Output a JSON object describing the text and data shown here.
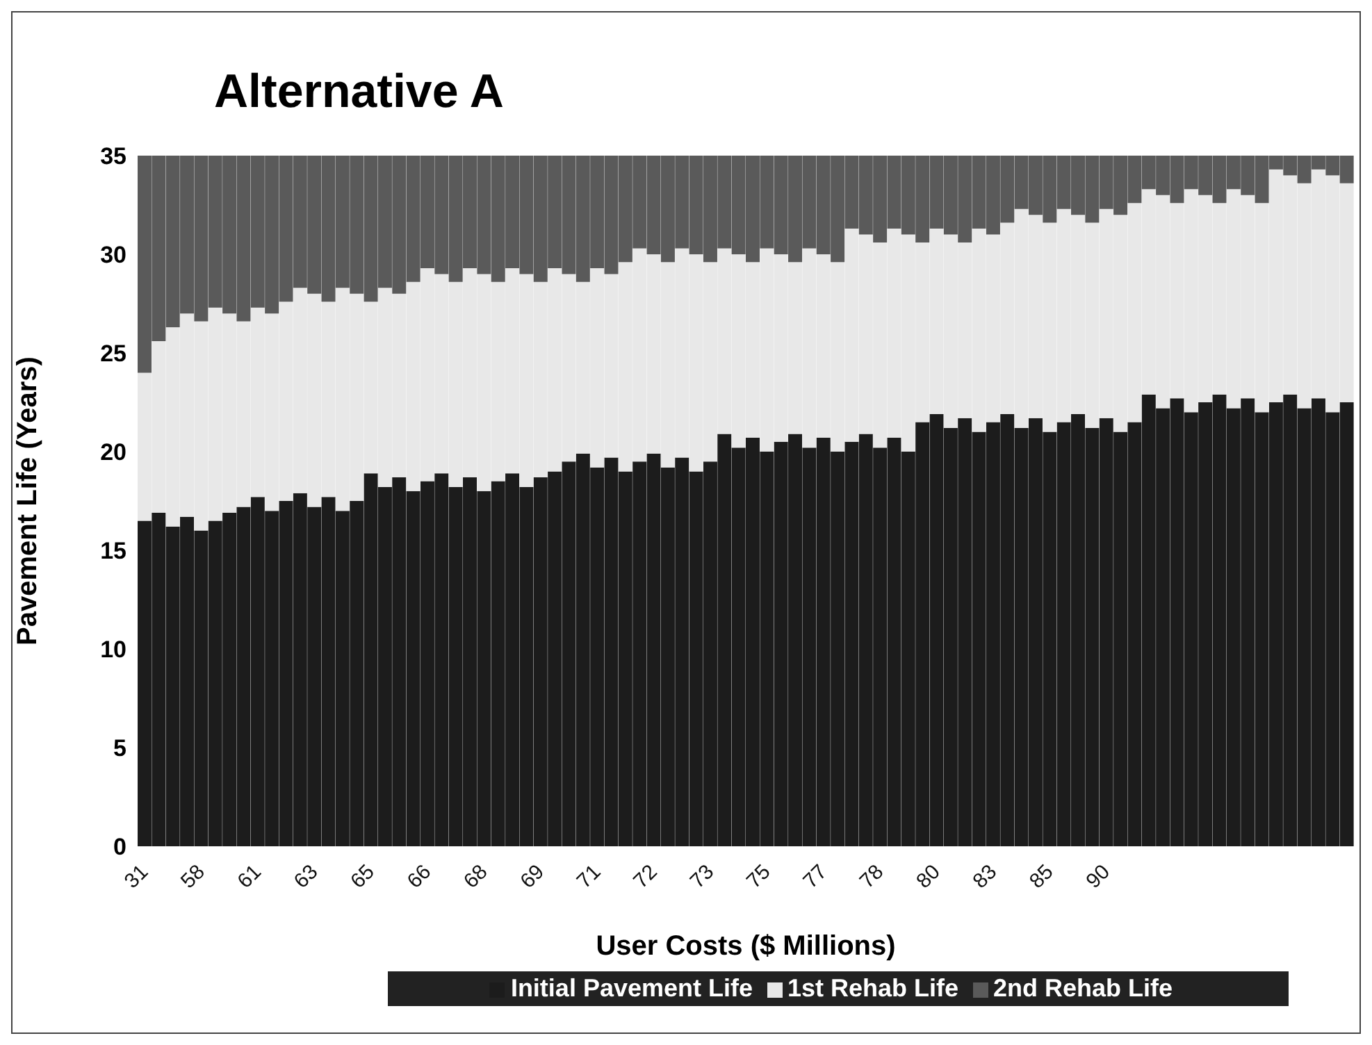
{
  "chart_data": {
    "type": "bar",
    "title": "Alternative A",
    "xlabel": "User Costs ($ Millions)",
    "ylabel": "Pavement Life (Years)",
    "stacked": true,
    "legend": "bottom",
    "grid": false,
    "categories": [
      "31",
      null,
      null,
      null,
      "58",
      null,
      null,
      null,
      "61",
      null,
      null,
      null,
      "63",
      null,
      null,
      null,
      "65",
      null,
      null,
      null,
      "66",
      null,
      null,
      null,
      "68",
      null,
      null,
      null,
      "69",
      null,
      null,
      null,
      "71",
      null,
      null,
      null,
      "72",
      null,
      null,
      null,
      "73",
      null,
      null,
      null,
      "75",
      null,
      null,
      null,
      "77",
      null,
      null,
      null,
      "78",
      null,
      null,
      null,
      "80",
      null,
      null,
      null,
      "83",
      null,
      null,
      null,
      "85",
      null,
      null,
      null,
      "90",
      null,
      null,
      null,
      null,
      null,
      null,
      null,
      null,
      null,
      null,
      null,
      null,
      null,
      null,
      null,
      null,
      null
    ],
    "ylim": [
      0,
      35
    ],
    "yticks": [
      0,
      5,
      10,
      15,
      20,
      25,
      30,
      35
    ],
    "series": [
      {
        "name": "Initial Pavement Life",
        "color": "#1c1c1c",
        "values": [
          16.5,
          16.9,
          16.2,
          16.7,
          16.0,
          16.5,
          16.9,
          17.2,
          17.7,
          17.0,
          17.5,
          17.9,
          17.2,
          17.7,
          17.0,
          17.5,
          18.9,
          18.2,
          18.7,
          18.0,
          18.5,
          18.9,
          18.2,
          18.7,
          18.0,
          18.5,
          18.9,
          18.2,
          18.7,
          19.0,
          19.5,
          19.9,
          19.2,
          19.7,
          19.0,
          19.5,
          19.9,
          19.2,
          19.7,
          19.0,
          19.5,
          20.9,
          20.2,
          20.7,
          20.0,
          20.5,
          20.9,
          20.2,
          20.7,
          20.0,
          20.5,
          20.9,
          20.2,
          20.7,
          20.0,
          21.5,
          21.9,
          21.2,
          21.7,
          21.0,
          21.5,
          21.9,
          21.2,
          21.7,
          21.0,
          21.5,
          21.9,
          21.2,
          21.7,
          21.0,
          21.5,
          22.9,
          22.2,
          22.7,
          22.0,
          22.5,
          22.9,
          22.2,
          22.7,
          22.0,
          22.5,
          22.9,
          22.2,
          22.7,
          22.0,
          22.5
        ]
      },
      {
        "name": "1st Rehab Life",
        "color": "#e8e8e8",
        "values": [
          7.5,
          8.7,
          10.1,
          10.3,
          10.6,
          10.8,
          10.1,
          9.4,
          9.6,
          10.0,
          10.1,
          10.4,
          10.8,
          9.9,
          11.3,
          10.5,
          8.7,
          10.1,
          9.3,
          10.6,
          10.8,
          10.1,
          10.4,
          10.6,
          11.0,
          10.1,
          10.4,
          10.8,
          9.9,
          10.3,
          9.5,
          8.7,
          10.1,
          9.3,
          10.6,
          10.8,
          10.1,
          10.4,
          10.6,
          11.0,
          10.1,
          9.4,
          9.8,
          8.9,
          10.3,
          9.5,
          8.7,
          10.1,
          9.3,
          9.6,
          10.8,
          10.1,
          10.4,
          10.6,
          11.0,
          9.1,
          9.4,
          9.8,
          8.9,
          10.3,
          9.5,
          9.7,
          11.1,
          10.3,
          10.6,
          10.8,
          10.1,
          10.4,
          10.6,
          11.0,
          11.1,
          10.4,
          10.8,
          9.9,
          11.3,
          10.5,
          9.7,
          11.1,
          10.3,
          10.6,
          11.8,
          11.1,
          11.4,
          11.6,
          12.0,
          11.1
        ]
      },
      {
        "name": "2nd Rehab Life",
        "color": "#5a5a5a",
        "values": [
          11,
          9.4,
          8.7,
          8,
          8.4,
          7.7,
          8,
          8.4,
          7.7,
          8,
          7.4,
          6.7,
          7,
          7.4,
          6.7,
          7,
          7.4,
          6.7,
          7,
          6.4,
          5.7,
          6,
          6.4,
          5.7,
          6,
          6.4,
          5.7,
          6,
          6.4,
          5.7,
          6,
          6.4,
          5.7,
          6,
          5.4,
          4.7,
          5,
          5.4,
          4.7,
          5,
          5.4,
          4.7,
          5,
          5.4,
          4.7,
          5,
          5.4,
          4.7,
          5,
          5.4,
          3.7,
          4,
          4.4,
          3.7,
          4,
          4.4,
          3.7,
          4,
          4.4,
          3.7,
          4,
          3.4,
          2.7,
          3,
          3.4,
          2.7,
          3,
          3.4,
          2.7,
          3,
          2.4,
          1.7,
          2,
          2.4,
          1.7,
          2,
          2.4,
          1.7,
          2,
          2.4,
          0.7,
          1,
          1.4,
          0.7,
          1,
          1.4
        ]
      }
    ]
  }
}
